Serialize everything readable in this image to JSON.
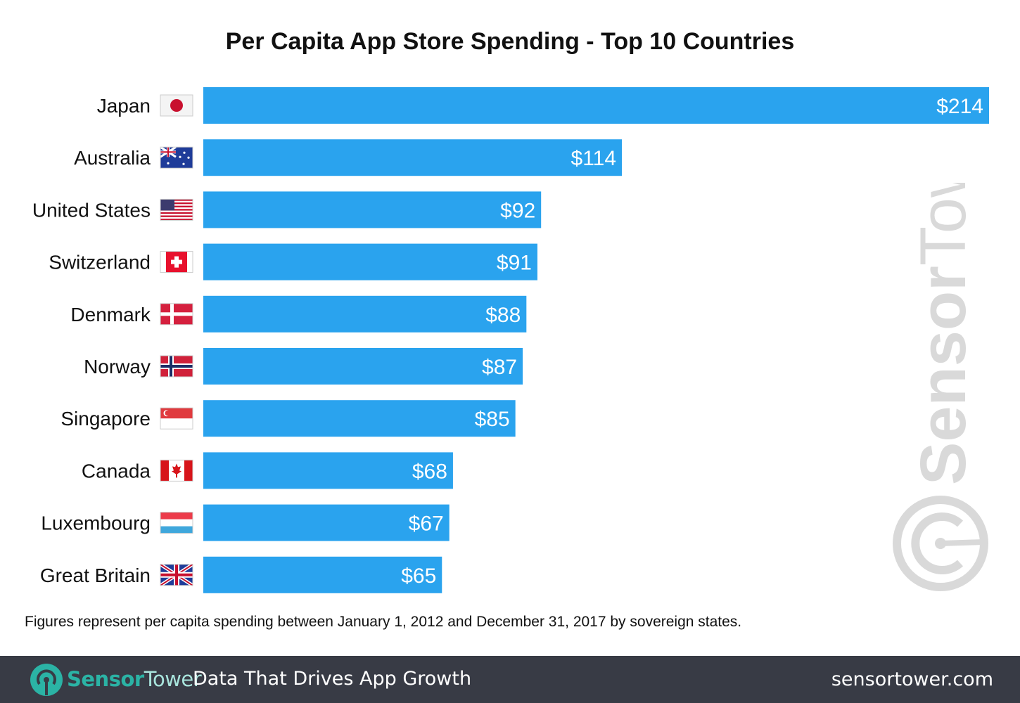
{
  "chart_data": {
    "type": "bar",
    "orientation": "horizontal",
    "title": "Per Capita App Store Spending - Top 10 Countries",
    "categories": [
      "Japan",
      "Australia",
      "United States",
      "Switzerland",
      "Denmark",
      "Norway",
      "Singapore",
      "Canada",
      "Luxembourg",
      "Great Britain"
    ],
    "values": [
      214,
      114,
      92,
      91,
      88,
      87,
      85,
      68,
      67,
      65
    ],
    "data_labels": [
      "$214",
      "$114",
      "$92",
      "$91",
      "$88",
      "$87",
      "$85",
      "$68",
      "$67",
      "$65"
    ],
    "flags": [
      "japan-flag",
      "australia-flag",
      "us-flag",
      "switzerland-flag",
      "denmark-flag",
      "norway-flag",
      "singapore-flag",
      "canada-flag",
      "luxembourg-flag",
      "uk-flag"
    ],
    "xlim": [
      0,
      214
    ],
    "grid": false,
    "bar_color": "#2aa3ee",
    "note": "Figures represent per capita spending between January 1, 2012 and December 31, 2017 by sovereign states."
  },
  "watermark": "SensorTower",
  "footer": {
    "brand_bold": "Sensor",
    "brand_light": "Tower",
    "tagline": "Data That Drives App Growth",
    "url": "sensortower.com",
    "accent": "#2bb3a5",
    "background": "#383b45"
  }
}
